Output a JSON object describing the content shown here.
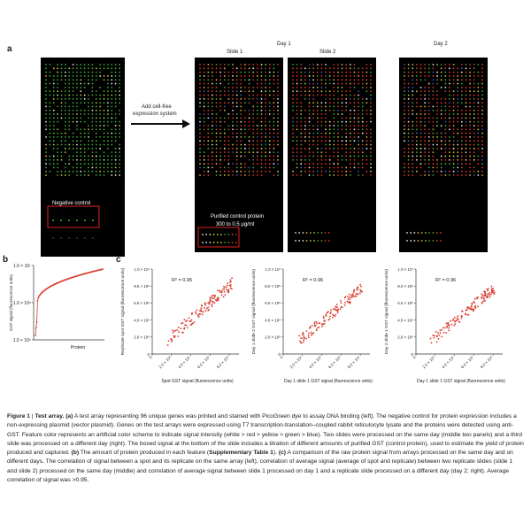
{
  "panel_a": {
    "letter": "a",
    "arrow_label_line1": "Add cell-free",
    "arrow_label_line2": "expression system",
    "day1_label": "Day 1",
    "slide1_label": "Slide 1",
    "slide2_label": "Slide 2",
    "day2_label": "Day 2",
    "negative_control_label": "Negative control",
    "purified_label_line1": "Purified control protein",
    "purified_label_line2": "300 to 0.5 μg/ml",
    "colors": {
      "red": "#e03a2a",
      "yellow": "#d8c83a",
      "green": "#3fae3a",
      "white": "#f2f2f2",
      "blue": "#3060c0"
    }
  },
  "panel_b": {
    "letter": "b",
    "chart_data": {
      "type": "line",
      "xlabel": "Protein",
      "ylabel": "GST signal (fluorescence units)",
      "yscale": "log",
      "ylim": [
        100000,
        10000000
      ],
      "yticks": [
        "1.0 × 10⁷",
        "1.0 × 10⁶",
        "1.0 × 10⁵"
      ],
      "series_color": "#d93a2b"
    }
  },
  "panel_c": {
    "letter": "c",
    "charts": [
      {
        "type": "scatter",
        "r2": "R² = 0.95",
        "xlabel": "Spot GST signal (fluorescence units)",
        "ylabel": "Replicate spot GST signal (fluorescence units)",
        "yticks": [
          "1.0 × 10⁷",
          "8.0 × 10⁶",
          "6.0 × 10⁶",
          "4.0 × 10⁶",
          "2.0 × 10⁶",
          "0"
        ],
        "xticks": [
          "0",
          "2.0 × 10⁶",
          "4.0 × 10⁶",
          "6.0 × 10⁶",
          "8.0 × 10⁶"
        ],
        "spread": 0.9
      },
      {
        "type": "scatter",
        "r2": "R² = 0.96",
        "xlabel": "Day 1 slide 1 GST signal (fluorescence units)",
        "ylabel": "Day 1 slide 2 GST signal (fluorescence units)",
        "yticks": [
          "1.0 × 10⁷",
          "8.0 × 10⁶",
          "6.0 × 10⁶",
          "4.0 × 10⁶",
          "2.0 × 10⁶",
          "0"
        ],
        "xticks": [
          "0",
          "2.0 × 10⁶",
          "4.0 × 10⁶",
          "6.0 × 10⁶",
          "8.0 × 10⁶"
        ],
        "spread": 0.8
      },
      {
        "type": "scatter",
        "r2": "R² = 0.96",
        "xlabel": "Day 1 slide 1 GST signal (fluorescence units)",
        "ylabel": "Day 2 slide 1 GST signal (fluorescence units)",
        "yticks": [
          "1.0 × 10⁷",
          "8.0 × 10⁶",
          "6.0 × 10⁶",
          "4.0 × 10⁶",
          "2.0 × 10⁶",
          "0"
        ],
        "xticks": [
          "0",
          "2.0 × 10⁶",
          "4.0 × 10⁶",
          "6.0 × 10⁶",
          "8.0 × 10⁶"
        ],
        "spread": 0.8
      }
    ],
    "point_color": "#d93a2b"
  },
  "caption": {
    "fig": "Figure 1",
    "sep": " | ",
    "title": "Test array.",
    "a_tag": "(a)",
    "a_text": " A test array representing 96 unique genes was printed and stained with PicoGreen dye to assay DNA binding (left). The negative control for protein expression includes a non-expressing plasmid (vector plasmid). Genes on the test arrays were expressed using T7 transcription-translation–coupled rabbit reticulocyte lysate and the proteins were detected using anti-GST. Feature color represents an artificial color scheme to indicate signal intensity (white > red > yellow > green > blue). Two slides were processed on the same day (middle two panels) and a third slide was processed on a different day (right). The boxed signal at the bottom of the slide includes a titration of different amounts of purified GST (control protein), used to estimate the yield of protein produced and captured. ",
    "b_tag": "(b)",
    "b_text": " The amount of protein produced in each feature (",
    "b_ref": "Supplementary Table 1",
    "b_text2": "). ",
    "c_tag": "(c)",
    "c_text": " A comparison of the raw protein signal from arrays processed on the same day and on different days. The correlation of signal between a spot and its replicate on the same array (left), correlation of average signal (average of spot and replicate) between two replicate slides (slide 1 and slide 2) processed on the same day (middle) and correlation of average signal between slide 1 processed on day 1 and a replicate slide processed on a different day (day 2; right). Average correlation of signal was >0.95."
  }
}
